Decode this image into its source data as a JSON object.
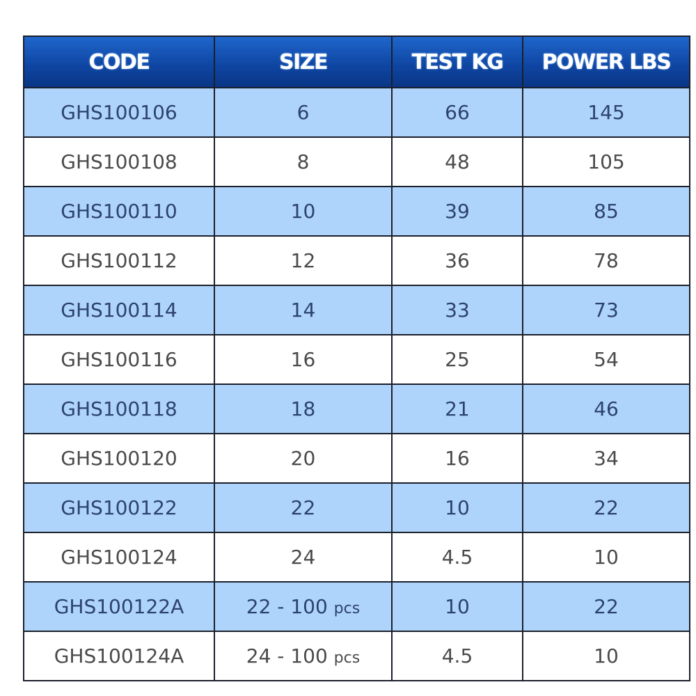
{
  "table": {
    "headers": [
      "CODE",
      "SIZE",
      "TEST KG",
      "POWER LBS"
    ],
    "rows": [
      [
        "GHS100106",
        "6",
        "66",
        "145"
      ],
      [
        "GHS100108",
        "8",
        "48",
        "105"
      ],
      [
        "GHS100110",
        "10",
        "39",
        "85"
      ],
      [
        "GHS100112",
        "12",
        "36",
        "78"
      ],
      [
        "GHS100114",
        "14",
        "33",
        "73"
      ],
      [
        "GHS100116",
        "16",
        "25",
        "54"
      ],
      [
        "GHS100118",
        "18",
        "21",
        "46"
      ],
      [
        "GHS100120",
        "20",
        "16",
        "34"
      ],
      [
        "GHS100122",
        "22",
        "10",
        "22"
      ],
      [
        "GHS100124",
        "24",
        "4.5",
        "10"
      ],
      [
        "GHS100122A",
        "22 - 100 pcs",
        "10",
        "22"
      ],
      [
        "GHS100124A",
        "24 - 100 pcs",
        "4.5",
        "10"
      ]
    ]
  },
  "colors": {
    "header": "#0e44a0",
    "row_alt": "#afd4fb",
    "row": "#ffffff",
    "border": "#1b1f2a"
  }
}
